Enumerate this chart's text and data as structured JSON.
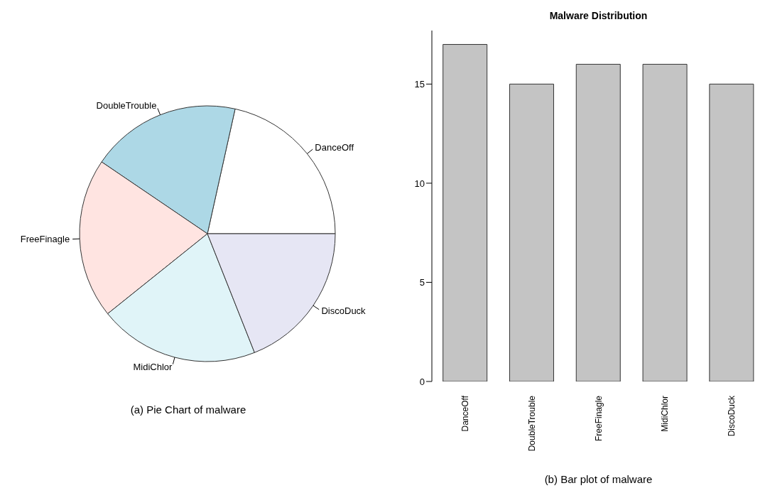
{
  "chart_data": [
    {
      "type": "pie",
      "categories": [
        "DanceOff",
        "DoubleTrouble",
        "FreeFinagle",
        "MidiChlor",
        "DiscoDuck"
      ],
      "values": [
        21.52,
        18.99,
        20.25,
        20.25,
        18.99
      ],
      "colors": [
        "#ffffff",
        "#add8e6",
        "#ffe4e1",
        "#e0f4f8",
        "#e6e6f4"
      ],
      "legend": false,
      "annotations": [
        "(a) Pie Chart of malware"
      ]
    },
    {
      "type": "bar",
      "title": "Malware Distribution",
      "categories": [
        "DanceOff",
        "DoubleTrouble",
        "FreeFinagle",
        "MidiChlor",
        "DiscoDuck"
      ],
      "values": [
        17,
        15,
        16,
        16,
        15
      ],
      "color": "#c4c4c4",
      "ylim": [
        0,
        17.7
      ],
      "yticks": [
        0,
        5,
        10,
        15
      ],
      "grid": false,
      "legend": false,
      "annotations": [
        "(b) Bar plot of malware"
      ]
    }
  ]
}
